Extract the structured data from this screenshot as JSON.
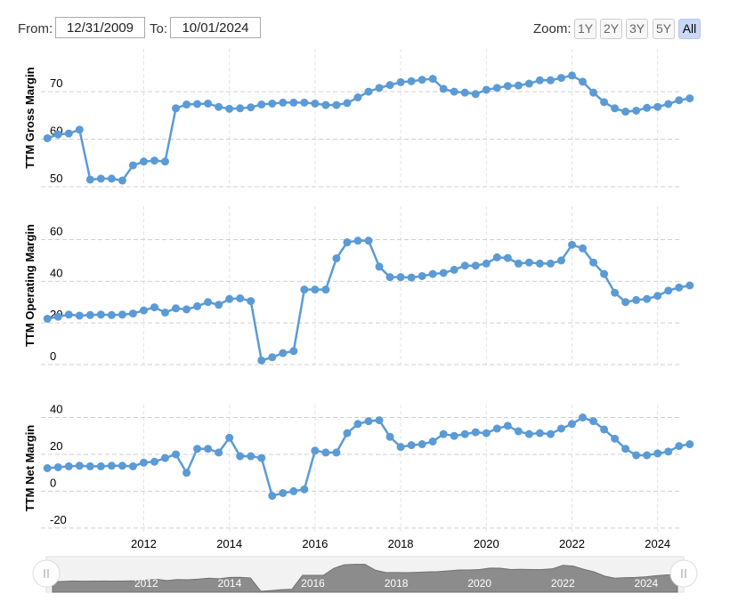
{
  "controls": {
    "from_label": "From:",
    "from": "12/31/2009",
    "to_label": "To:",
    "to": "10/01/2024",
    "zoom_label": "Zoom:",
    "zoom": [
      "1Y",
      "2Y",
      "3Y",
      "5Y",
      "All"
    ],
    "zoom_selected": 4
  },
  "chart_data": [
    {
      "type": "line",
      "ylabel": "TTM Gross Margin",
      "color": "#5b9bd5",
      "grid": true,
      "xlim": [
        2009.6,
        2024.9
      ],
      "xticks": [
        2012,
        2014,
        2016,
        2018,
        2020,
        2022,
        2024
      ],
      "ylim": [
        50,
        79
      ],
      "yticks": [
        50,
        60,
        70
      ],
      "x": [
        2009.75,
        2010,
        2010.25,
        2010.5,
        2010.75,
        2011,
        2011.25,
        2011.5,
        2011.75,
        2012,
        2012.25,
        2012.5,
        2012.75,
        2013,
        2013.25,
        2013.5,
        2013.75,
        2014,
        2014.25,
        2014.5,
        2014.75,
        2015,
        2015.25,
        2015.5,
        2015.75,
        2016,
        2016.25,
        2016.5,
        2016.75,
        2017,
        2017.25,
        2017.5,
        2017.75,
        2018,
        2018.25,
        2018.5,
        2018.75,
        2019,
        2019.25,
        2019.5,
        2019.75,
        2020,
        2020.25,
        2020.5,
        2020.75,
        2021,
        2021.25,
        2021.5,
        2021.75,
        2022,
        2022.25,
        2022.5,
        2022.75,
        2023,
        2023.25,
        2023.5,
        2023.75,
        2024,
        2024.25,
        2024.5,
        2024.75
      ],
      "values": [
        60.2,
        61,
        61.2,
        62,
        51.5,
        51.7,
        51.7,
        51.3,
        54.5,
        55.3,
        55.5,
        55.3,
        66.5,
        67.3,
        67.4,
        67.5,
        66.8,
        66.4,
        66.5,
        66.7,
        67.3,
        67.5,
        67.7,
        67.7,
        67.7,
        67.5,
        67.2,
        67.2,
        67.6,
        68.8,
        70,
        70.8,
        71.4,
        72,
        72.2,
        72.5,
        72.7,
        70.6,
        70,
        69.8,
        69.5,
        70.4,
        70.8,
        71.2,
        71.3,
        71.7,
        72.4,
        72.4,
        72.9,
        73.4,
        72.1,
        69.8,
        67.8,
        66.5,
        65.8,
        66,
        66.6,
        66.8,
        67.4,
        68.2,
        68.6
      ]
    },
    {
      "type": "line",
      "ylabel": "TTM Operating Margin",
      "color": "#5b9bd5",
      "grid": true,
      "xlim": [
        2009.6,
        2024.9
      ],
      "xticks": [
        2012,
        2014,
        2016,
        2018,
        2020,
        2022,
        2024
      ],
      "ylim": [
        0,
        76
      ],
      "yticks": [
        0,
        20,
        40,
        60
      ],
      "x": [
        2009.75,
        2010,
        2010.25,
        2010.5,
        2010.75,
        2011,
        2011.25,
        2011.5,
        2011.75,
        2012,
        2012.25,
        2012.5,
        2012.75,
        2013,
        2013.25,
        2013.5,
        2013.75,
        2014,
        2014.25,
        2014.5,
        2014.75,
        2015,
        2015.25,
        2015.5,
        2015.75,
        2016,
        2016.25,
        2016.5,
        2016.75,
        2017,
        2017.25,
        2017.5,
        2017.75,
        2018,
        2018.25,
        2018.5,
        2018.75,
        2019,
        2019.25,
        2019.5,
        2019.75,
        2020,
        2020.25,
        2020.5,
        2020.75,
        2021,
        2021.25,
        2021.5,
        2021.75,
        2022,
        2022.25,
        2022.5,
        2022.75,
        2023,
        2023.25,
        2023.5,
        2023.75,
        2024,
        2024.25,
        2024.5,
        2024.75
      ],
      "values": [
        22,
        23,
        24,
        23.5,
        23.8,
        24,
        23.8,
        24,
        24.5,
        26,
        27.5,
        25,
        27,
        26.5,
        28,
        30,
        28.7,
        31.5,
        31.8,
        30.5,
        2,
        3.5,
        5.5,
        6.5,
        36,
        36,
        36,
        51,
        58.7,
        59.5,
        59.5,
        47,
        42,
        42,
        41.8,
        42.5,
        43.5,
        44,
        45.5,
        47.5,
        47.5,
        48.5,
        51.5,
        51.2,
        48.5,
        49,
        48.5,
        48.5,
        50,
        57.5,
        55.8,
        49,
        43.5,
        34.5,
        30,
        31,
        31.5,
        33,
        35.5,
        37,
        38
      ]
    },
    {
      "type": "line",
      "ylabel": "TTM Net Margin",
      "color": "#5b9bd5",
      "grid": true,
      "xlim": [
        2009.6,
        2024.9
      ],
      "xticks": [
        2012,
        2014,
        2016,
        2018,
        2020,
        2022,
        2024
      ],
      "ylim": [
        -22,
        47
      ],
      "yticks": [
        -20,
        0,
        20,
        40
      ],
      "x": [
        2009.75,
        2010,
        2010.25,
        2010.5,
        2010.75,
        2011,
        2011.25,
        2011.5,
        2011.75,
        2012,
        2012.25,
        2012.5,
        2012.75,
        2013,
        2013.25,
        2013.5,
        2013.75,
        2014,
        2014.25,
        2014.5,
        2014.75,
        2015,
        2015.25,
        2015.5,
        2015.75,
        2016,
        2016.25,
        2016.5,
        2016.75,
        2017,
        2017.25,
        2017.5,
        2017.75,
        2018,
        2018.25,
        2018.5,
        2018.75,
        2019,
        2019.25,
        2019.5,
        2019.75,
        2020,
        2020.25,
        2020.5,
        2020.75,
        2021,
        2021.25,
        2021.5,
        2021.75,
        2022,
        2022.25,
        2022.5,
        2022.75,
        2023,
        2023.25,
        2023.5,
        2023.75,
        2024,
        2024.25,
        2024.5,
        2024.75
      ],
      "values": [
        12.5,
        13,
        13.5,
        13.8,
        13.5,
        13.5,
        13.8,
        13.8,
        13.5,
        15.5,
        16,
        18,
        20,
        10,
        23,
        23,
        21,
        29,
        19,
        19,
        18,
        -2.5,
        -1,
        0,
        1,
        22,
        21,
        21,
        31.5,
        36.5,
        38,
        38.5,
        29.5,
        24,
        25,
        25.5,
        27,
        31,
        30,
        31,
        32,
        31.5,
        34,
        35.5,
        32.5,
        31,
        31.5,
        31,
        34,
        36.5,
        40,
        38,
        33.5,
        28.5,
        23,
        19.5,
        19.5,
        20.5,
        21.5,
        24.5,
        25.5
      ]
    }
  ]
}
